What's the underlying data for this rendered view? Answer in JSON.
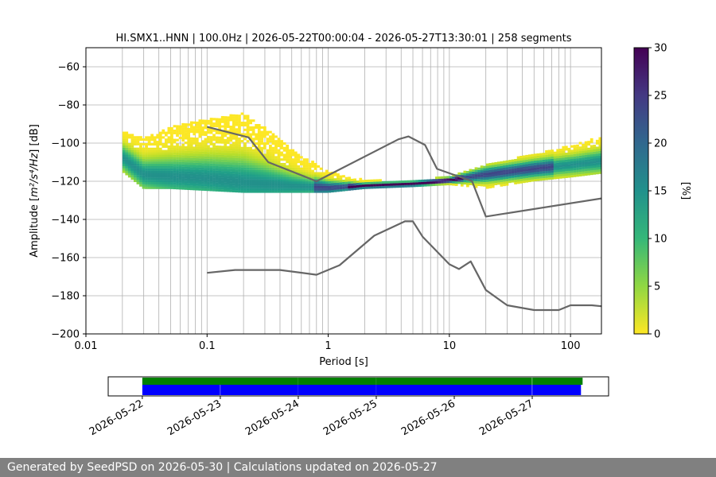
{
  "chart_data": {
    "type": "heatmap",
    "title": "HI.SMX1..HNN | 100.0Hz | 2026-05-22T00:00:04 - 2026-05-27T13:30:01 | 258 segments",
    "xlabel": "Period [s]",
    "ylabel_prefix": "Amplitude [",
    "ylabel_math": "m²/s⁴/Hz",
    "ylabel_suffix": "] [dB]",
    "x_scale": "log",
    "xlim": [
      0.01,
      180
    ],
    "ylim": [
      -200,
      -50
    ],
    "x_ticks": [
      0.01,
      0.1,
      1,
      10,
      100
    ],
    "x_tick_labels": [
      "0.01",
      "0.1",
      "1",
      "10",
      "100"
    ],
    "y_ticks": [
      -200,
      -180,
      -160,
      -140,
      -120,
      -100,
      -80,
      -60
    ],
    "y_tick_labels": [
      "−200",
      "−180",
      "−160",
      "−140",
      "−120",
      "−100",
      "−80",
      "−60"
    ],
    "grid": "x",
    "colormap": "viridis_r",
    "colorbar": {
      "label": "[%]",
      "range": [
        0,
        30
      ],
      "ticks": [
        0,
        5,
        10,
        15,
        20,
        25,
        30
      ],
      "tick_labels": [
        "0",
        "5",
        "10",
        "15",
        "20",
        "25",
        "30"
      ]
    },
    "psd_band": [
      {
        "period": 0.02,
        "lower": -115,
        "upper": -94,
        "mode": -108
      },
      {
        "period": 0.03,
        "lower": -124,
        "upper": -98,
        "mode": -117
      },
      {
        "period": 0.05,
        "lower": -124,
        "upper": -92,
        "mode": -118
      },
      {
        "period": 0.1,
        "lower": -125,
        "upper": -88,
        "mode": -119
      },
      {
        "period": 0.2,
        "lower": -126,
        "upper": -85,
        "mode": -121
      },
      {
        "period": 0.3,
        "lower": -126,
        "upper": -92,
        "mode": -122
      },
      {
        "period": 0.5,
        "lower": -126,
        "upper": -104,
        "mode": -123
      },
      {
        "period": 1,
        "lower": -126,
        "upper": -115,
        "mode": -124
      },
      {
        "period": 2,
        "lower": -124,
        "upper": -120,
        "mode": -123
      },
      {
        "period": 5,
        "lower": -123,
        "upper": -120,
        "mode": -122
      },
      {
        "period": 10,
        "lower": -122,
        "upper": -118,
        "mode": -120
      },
      {
        "period": 20,
        "lower": -124,
        "upper": -112,
        "mode": -117
      },
      {
        "period": 50,
        "lower": -120,
        "upper": -106,
        "mode": -114
      },
      {
        "period": 100,
        "lower": -118,
        "upper": -102,
        "mode": -112
      },
      {
        "period": 180,
        "lower": -116,
        "upper": -97,
        "mode": -110
      }
    ],
    "series": [
      {
        "name": "",
        "color": "#666666",
        "x": [
          0.1,
          0.22,
          0.32,
          0.8,
          3.8,
          4.6,
          6.3,
          7.9,
          15.4,
          20,
          180
        ],
        "y": [
          -91.5,
          -97,
          -110,
          -120,
          -98,
          -96.5,
          -101,
          -113.5,
          -120,
          -138.5,
          -129
        ]
      },
      {
        "name": "",
        "color": "#666666",
        "x": [
          0.1,
          0.17,
          0.4,
          0.8,
          1.24,
          2.4,
          4.3,
          5.0,
          6.0,
          10,
          12,
          15,
          20,
          30,
          50,
          80,
          100,
          150,
          180
        ],
        "y": [
          -168,
          -166.5,
          -166.5,
          -169,
          -164,
          -148.5,
          -141,
          -141,
          -149,
          -163.5,
          -166,
          -162,
          -177,
          -185,
          -187.5,
          -187.5,
          -185,
          -185,
          -185.5
        ]
      }
    ]
  },
  "availability": {
    "date_labels": [
      "2026-05-22",
      "2026-05-23",
      "2026-05-24",
      "2026-05-25",
      "2026-05-26",
      "2026-05-27"
    ],
    "start": "2026-05-21T13:30:00",
    "end": "2026-05-27T23:30:00",
    "upper_bar_color": "#008000",
    "lower_bar_color": "#0000ff",
    "upper_segments": [
      [
        "2026-05-22T00:00",
        "2026-05-23T23:59"
      ],
      [
        "2026-05-24T00:01",
        "2026-05-24T23:59"
      ],
      [
        "2026-05-25T00:01",
        "2026-05-26T23:55"
      ],
      [
        "2026-05-27T00:02",
        "2026-05-27T15:30"
      ]
    ],
    "lower_segments": [
      [
        "2026-05-22T00:00",
        "2026-05-22T23:57"
      ],
      [
        "2026-05-23T00:03",
        "2026-05-23T23:59"
      ],
      [
        "2026-05-24T00:01",
        "2026-05-24T23:59"
      ],
      [
        "2026-05-25T00:01",
        "2026-05-26T23:55"
      ],
      [
        "2026-05-27T00:02",
        "2026-05-27T15:00"
      ]
    ]
  },
  "footer": {
    "text": "Generated by SeedPSD on 2026-05-30 | Calculations updated on 2026-05-27"
  }
}
